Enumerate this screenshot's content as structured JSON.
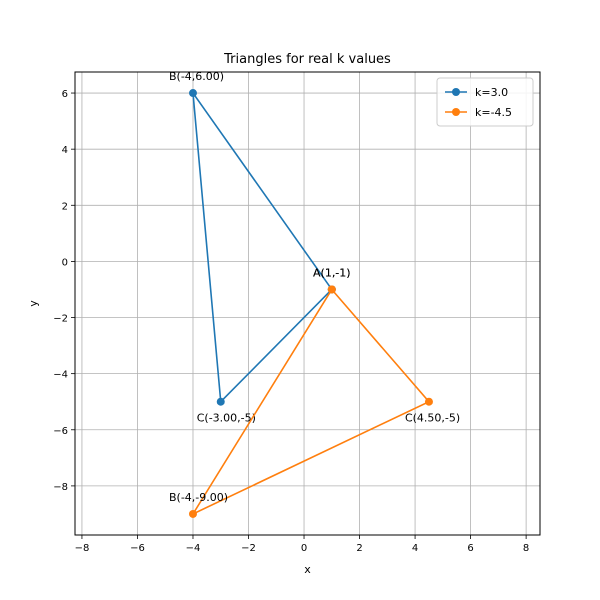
{
  "chart_data": {
    "type": "line",
    "title": "Triangles for real k values",
    "xlabel": "x",
    "ylabel": "y",
    "xlim": [
      -8.25,
      8.5
    ],
    "ylim": [
      -9.75,
      6.75
    ],
    "xticks": [
      -8,
      -6,
      -4,
      -2,
      0,
      2,
      4,
      6,
      8
    ],
    "yticks": [
      -8,
      -6,
      -4,
      -2,
      0,
      2,
      4,
      6
    ],
    "grid": true,
    "legend_position": "top-right",
    "series": [
      {
        "name": "k=3.0",
        "color": "#1f77b4",
        "x": [
          1,
          -4,
          -3,
          1
        ],
        "y": [
          -1,
          6,
          -5,
          -1
        ],
        "labels": [
          "A(1,-1)",
          "B(-4,6.00)",
          "C(-3.00,-5)"
        ]
      },
      {
        "name": "k=-4.5",
        "color": "#ff7f0e",
        "x": [
          1,
          -4,
          4.5,
          1
        ],
        "y": [
          -1,
          -9,
          -5,
          -1
        ],
        "labels": [
          "A(1,-1)",
          "B(-4,-9.00)",
          "C(4.50,-5)"
        ]
      }
    ]
  }
}
